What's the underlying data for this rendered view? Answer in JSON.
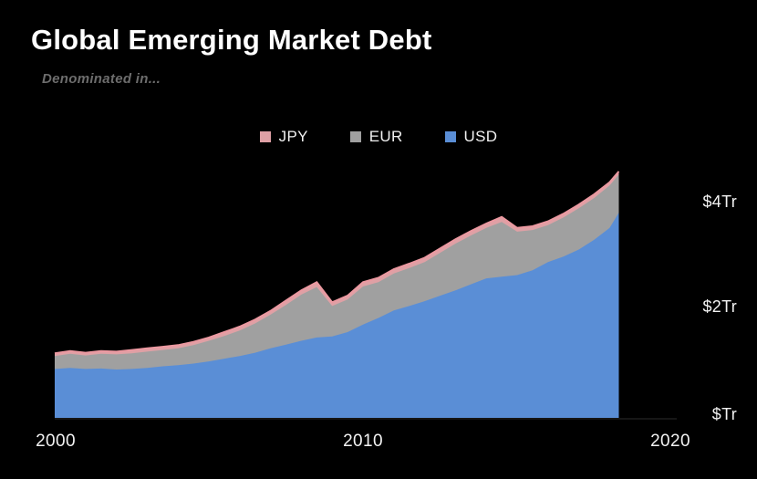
{
  "title": "Global Emerging Market Debt",
  "subtitle": "Denominated in...",
  "legend": [
    {
      "label": "JPY",
      "color": "#dfa0a5"
    },
    {
      "label": "EUR",
      "color": "#a0a0a0"
    },
    {
      "label": "USD",
      "color": "#5a8ed6"
    }
  ],
  "y_axis": {
    "labels": [
      "$4Tr",
      "$2Tr",
      "$Tr"
    ],
    "values": [
      4,
      2,
      0
    ]
  },
  "x_axis": {
    "labels": [
      "2000",
      "2010",
      "2020"
    ],
    "values": [
      2000,
      2010,
      2020
    ]
  },
  "chart_data": {
    "type": "area",
    "stacked": true,
    "title": "Global Emerging Market Debt",
    "subtitle": "Denominated in...",
    "unit": "$ trillion",
    "xlim": [
      2000,
      2020
    ],
    "ylim": [
      0,
      4.6
    ],
    "grid": false,
    "legend_position": "top",
    "x": [
      2000,
      2000.5,
      2001,
      2001.5,
      2002,
      2002.5,
      2003,
      2003.5,
      2004,
      2004.5,
      2005,
      2005.5,
      2006,
      2006.5,
      2007,
      2007.5,
      2008,
      2008.5,
      2009,
      2009.5,
      2010,
      2010.5,
      2011,
      2011.5,
      2012,
      2012.5,
      2013,
      2013.5,
      2014,
      2014.5,
      2015,
      2015.5,
      2016,
      2016.5,
      2017,
      2017.5,
      2018,
      2018.3
    ],
    "series": [
      {
        "name": "USD",
        "color": "#5a8ed6",
        "values": [
          0.9,
          0.92,
          0.9,
          0.91,
          0.89,
          0.9,
          0.92,
          0.95,
          0.97,
          1.0,
          1.04,
          1.09,
          1.14,
          1.2,
          1.28,
          1.35,
          1.42,
          1.48,
          1.5,
          1.58,
          1.72,
          1.84,
          1.98,
          2.06,
          2.15,
          2.25,
          2.35,
          2.46,
          2.57,
          2.6,
          2.63,
          2.72,
          2.87,
          2.97,
          3.1,
          3.28,
          3.5,
          3.78
        ]
      },
      {
        "name": "EUR",
        "color": "#a0a0a0",
        "values": [
          0.24,
          0.26,
          0.25,
          0.27,
          0.28,
          0.29,
          0.3,
          0.3,
          0.31,
          0.34,
          0.38,
          0.42,
          0.47,
          0.54,
          0.62,
          0.73,
          0.85,
          0.93,
          0.56,
          0.6,
          0.7,
          0.66,
          0.68,
          0.7,
          0.72,
          0.79,
          0.86,
          0.9,
          0.93,
          1.01,
          0.8,
          0.74,
          0.68,
          0.72,
          0.76,
          0.77,
          0.78,
          0.7
        ]
      },
      {
        "name": "JPY",
        "color": "#dfa0a5",
        "values": [
          0.05,
          0.05,
          0.05,
          0.05,
          0.05,
          0.06,
          0.06,
          0.06,
          0.06,
          0.06,
          0.06,
          0.07,
          0.07,
          0.07,
          0.07,
          0.08,
          0.08,
          0.09,
          0.07,
          0.07,
          0.08,
          0.08,
          0.08,
          0.08,
          0.08,
          0.08,
          0.08,
          0.08,
          0.08,
          0.09,
          0.07,
          0.07,
          0.07,
          0.07,
          0.07,
          0.07,
          0.06,
          0.06
        ]
      }
    ],
    "top_edge_stroke": "#ec99a1",
    "baseline_color": "#2b2b2b"
  }
}
